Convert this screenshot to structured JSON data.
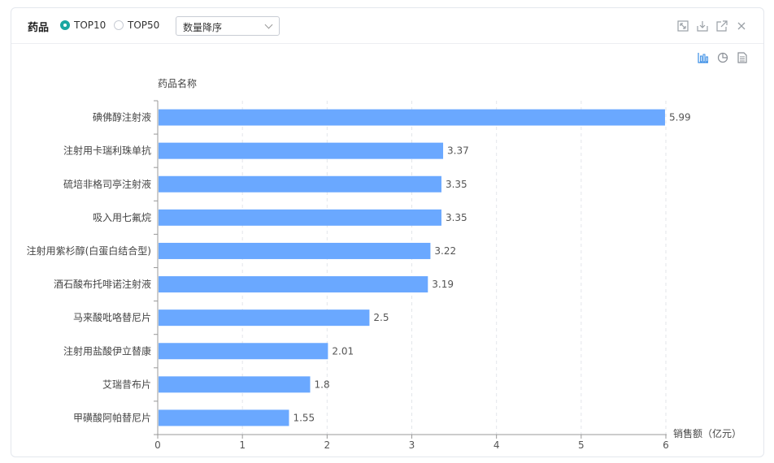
{
  "header": {
    "title": "药品",
    "options": [
      {
        "label": "TOP10",
        "selected": true
      },
      {
        "label": "TOP50",
        "selected": false
      }
    ],
    "sort_select": {
      "value": "数量降序"
    }
  },
  "window_icons": [
    "fullscreen-icon",
    "download-icon",
    "popout-icon",
    "close-icon"
  ],
  "toolbar_icons": [
    "bar-chart-icon",
    "pie-chart-icon",
    "table-view-icon"
  ],
  "colors": {
    "bar": "#6aa8ff",
    "accent": "#1aa7a2",
    "active_icon": "#3a8ee6"
  },
  "chart_data": {
    "type": "bar",
    "orientation": "horizontal",
    "ylabel": "药品名称",
    "xlabel": "销售额（亿元）",
    "xlim": [
      0,
      6
    ],
    "xticks": [
      "0",
      "1",
      "2",
      "3",
      "4",
      "5",
      "6"
    ],
    "grid": true,
    "categories": [
      "碘佛醇注射液",
      "注射用卡瑞利珠单抗",
      "硫培非格司亭注射液",
      "吸入用七氟烷",
      "注射用紫杉醇(白蛋白结合型)",
      "酒石酸布托啡诺注射液",
      "马来酸吡咯替尼片",
      "注射用盐酸伊立替康",
      "艾瑞昔布片",
      "甲磺酸阿帕替尼片"
    ],
    "values": [
      5.99,
      3.37,
      3.35,
      3.35,
      3.22,
      3.19,
      2.5,
      2.01,
      1.8,
      1.55
    ],
    "value_labels": [
      "5.99",
      "3.37",
      "3.35",
      "3.35",
      "3.22",
      "3.19",
      "2.5",
      "2.01",
      "1.8",
      "1.55"
    ]
  }
}
